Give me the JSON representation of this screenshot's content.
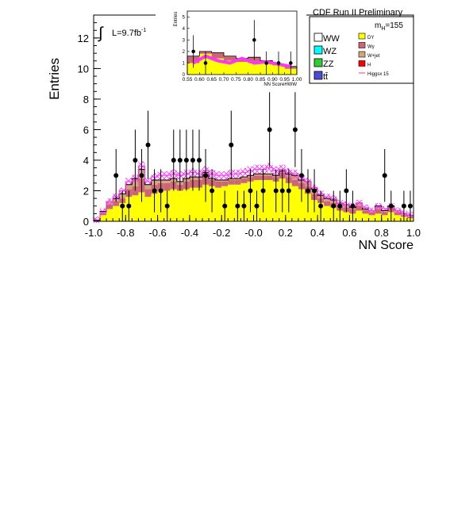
{
  "header": {
    "experiment": "CDF Run II Preliminary",
    "mass_label_base": "m",
    "mass_label_sub": "H",
    "mass_label_value": "=155",
    "lumi_text": "L=9.7fb",
    "lumi_sup": "-1"
  },
  "legend": {
    "col1": [
      {
        "label": "WW",
        "color": "#ffffff"
      },
      {
        "label": "WZ",
        "color": "#00ffff"
      },
      {
        "label": "ZZ",
        "color": "#33cc33"
      },
      {
        "label": "tt̄",
        "color": "#4b4bd6"
      }
    ],
    "col2": [
      {
        "label": "DY",
        "color": "#ffff00"
      },
      {
        "label": "Wγ",
        "color": "#cc6677"
      },
      {
        "label": "W+jet",
        "color": "#d2a679"
      },
      {
        "label": "H",
        "color": "#ff0000"
      },
      {
        "label": "Higgsx 15",
        "color": "#ff3366"
      }
    ]
  },
  "chart_data": {
    "type": "bar",
    "xlabel": "NN Score",
    "ylabel": "Entries",
    "xlim": [
      -1.0,
      1.0
    ],
    "ylim": [
      0,
      13.5
    ],
    "xticks": [
      "-1.0",
      "-0.8",
      "-0.6",
      "-0.4",
      "-0.2",
      "-0.0",
      "0.2",
      "0.4",
      "0.6",
      "0.8",
      "1.0"
    ],
    "yticks": [
      "0",
      "2",
      "4",
      "6",
      "8",
      "10",
      "12"
    ],
    "bin_edges_start": -1.0,
    "bin_width": 0.04,
    "series": [
      {
        "name": "DY",
        "values": [
          0.05,
          0.4,
          0.8,
          1.0,
          1.2,
          1.6,
          1.7,
          1.9,
          1.6,
          1.8,
          2.0,
          2.0,
          2.1,
          2.0,
          2.1,
          2.2,
          2.2,
          2.4,
          2.3,
          2.2,
          2.3,
          2.4,
          2.4,
          2.5,
          2.6,
          2.7,
          2.7,
          2.7,
          2.6,
          2.8,
          2.5,
          2.3,
          2.1,
          1.8,
          1.4,
          1.2,
          1.0,
          0.9,
          0.7,
          0.6,
          0.5,
          0.7,
          0.5,
          0.4,
          0.5,
          0.4,
          0.6,
          0.4,
          0.3,
          0.2
        ]
      },
      {
        "name": "Wγ",
        "values": [
          0.0,
          0.15,
          0.3,
          0.3,
          0.3,
          0.5,
          0.6,
          0.9,
          0.5,
          0.6,
          0.5,
          0.5,
          0.5,
          0.4,
          0.5,
          0.5,
          0.5,
          0.6,
          0.4,
          0.4,
          0.3,
          0.3,
          0.3,
          0.3,
          0.3,
          0.3,
          0.3,
          0.3,
          0.3,
          0.4,
          0.4,
          0.4,
          0.4,
          0.5,
          0.4,
          0.3,
          0.3,
          0.3,
          0.3,
          0.3,
          0.3,
          0.3,
          0.2,
          0.2,
          0.3,
          0.2,
          0.3,
          0.2,
          0.1,
          0.1
        ]
      },
      {
        "name": "W+jet",
        "values": [
          0.0,
          0.1,
          0.2,
          0.2,
          0.3,
          0.3,
          0.5,
          0.6,
          0.3,
          0.3,
          0.2,
          0.2,
          0.2,
          0.2,
          0.2,
          0.2,
          0.2,
          0.2,
          0.1,
          0.1,
          0.1,
          0.1,
          0.1,
          0.1,
          0.1,
          0.1,
          0.1,
          0.1,
          0.1,
          0.1,
          0.2,
          0.3,
          0.2,
          0.3,
          0.3,
          0.2,
          0.2,
          0.2,
          0.2,
          0.2,
          0.1,
          0.2,
          0.1,
          0.1,
          0.2,
          0.1,
          0.1,
          0.1,
          0.1,
          0.1
        ]
      },
      {
        "name": "Higgsx 15",
        "values": [
          0.1,
          0.6,
          1.3,
          1.6,
          2.0,
          2.6,
          2.7,
          3.6,
          2.6,
          2.9,
          3.0,
          3.0,
          3.1,
          3.0,
          3.1,
          3.2,
          3.1,
          3.3,
          3.1,
          3.0,
          3.0,
          3.1,
          3.1,
          3.2,
          3.3,
          3.4,
          3.4,
          3.5,
          3.3,
          3.4,
          3.2,
          3.1,
          2.8,
          2.6,
          2.2,
          1.8,
          1.6,
          1.5,
          1.2,
          1.1,
          1.0,
          1.2,
          0.9,
          0.7,
          0.9,
          0.8,
          0.9,
          0.7,
          0.5,
          0.4
        ]
      },
      {
        "name": "Data",
        "points": [
          {
            "x": -0.86,
            "y": 3,
            "err": 1.73
          },
          {
            "x": -0.82,
            "y": 1,
            "err": 1.0
          },
          {
            "x": -0.78,
            "y": 1,
            "err": 1.0
          },
          {
            "x": -0.74,
            "y": 4,
            "err": 2.0
          },
          {
            "x": -0.7,
            "y": 3,
            "err": 1.73
          },
          {
            "x": -0.66,
            "y": 5,
            "err": 2.24
          },
          {
            "x": -0.62,
            "y": 2,
            "err": 1.41
          },
          {
            "x": -0.58,
            "y": 2,
            "err": 1.41
          },
          {
            "x": -0.54,
            "y": 1,
            "err": 1.0
          },
          {
            "x": -0.5,
            "y": 4,
            "err": 2.0
          },
          {
            "x": -0.46,
            "y": 4,
            "err": 2.0
          },
          {
            "x": -0.42,
            "y": 4,
            "err": 2.0
          },
          {
            "x": -0.38,
            "y": 4,
            "err": 2.0
          },
          {
            "x": -0.34,
            "y": 4,
            "err": 2.0
          },
          {
            "x": -0.3,
            "y": 3,
            "err": 1.73
          },
          {
            "x": -0.26,
            "y": 2,
            "err": 1.41
          },
          {
            "x": -0.18,
            "y": 1,
            "err": 1.0
          },
          {
            "x": -0.14,
            "y": 5,
            "err": 2.24
          },
          {
            "x": -0.1,
            "y": 1,
            "err": 1.0
          },
          {
            "x": -0.06,
            "y": 1,
            "err": 1.0
          },
          {
            "x": -0.02,
            "y": 2,
            "err": 1.41
          },
          {
            "x": 0.02,
            "y": 1,
            "err": 1.0
          },
          {
            "x": 0.06,
            "y": 2,
            "err": 1.41
          },
          {
            "x": 0.1,
            "y": 6,
            "err": 2.45
          },
          {
            "x": 0.14,
            "y": 2,
            "err": 1.41
          },
          {
            "x": 0.18,
            "y": 2,
            "err": 1.41
          },
          {
            "x": 0.22,
            "y": 2,
            "err": 1.41
          },
          {
            "x": 0.26,
            "y": 6,
            "err": 2.45
          },
          {
            "x": 0.3,
            "y": 3,
            "err": 1.73
          },
          {
            "x": 0.34,
            "y": 2,
            "err": 1.41
          },
          {
            "x": 0.38,
            "y": 2,
            "err": 1.41
          },
          {
            "x": 0.42,
            "y": 1,
            "err": 1.0
          },
          {
            "x": 0.5,
            "y": 1,
            "err": 1.0
          },
          {
            "x": 0.54,
            "y": 1,
            "err": 1.0
          },
          {
            "x": 0.58,
            "y": 2,
            "err": 1.41
          },
          {
            "x": 0.62,
            "y": 1,
            "err": 1.0
          },
          {
            "x": 0.82,
            "y": 3,
            "err": 1.73
          },
          {
            "x": 0.86,
            "y": 1,
            "err": 1.0
          },
          {
            "x": 0.94,
            "y": 1,
            "err": 1.0
          },
          {
            "x": 0.98,
            "y": 1,
            "err": 1.0
          }
        ]
      }
    ],
    "inset": {
      "type": "bar",
      "xlabel": "NN ScoreHWW",
      "ylabel": "Entries",
      "xlim": [
        0.55,
        1.0
      ],
      "ylim": [
        0,
        5.5
      ],
      "xticks": [
        "0.55",
        "0.60",
        "0.65",
        "0.70",
        "0.75",
        "0.80",
        "0.85",
        "0.90",
        "0.95",
        "1.00"
      ],
      "yticks": [
        "0",
        "1",
        "2",
        "3",
        "4",
        "5"
      ],
      "bin_edges_start": 0.55,
      "bin_width": 0.05,
      "dy_values": [
        1.0,
        1.8,
        1.4,
        1.2,
        1.1,
        1.0,
        1.1,
        0.8,
        0.5
      ],
      "total_values": [
        1.6,
        2.0,
        1.9,
        1.6,
        1.4,
        1.5,
        1.2,
        0.9,
        0.7
      ],
      "higgs_values": [
        1.0,
        1.6,
        1.2,
        1.0,
        1.4,
        1.0,
        1.1,
        0.9,
        0.7
      ],
      "data": [
        {
          "x": 0.575,
          "y": 2,
          "err": 1.41
        },
        {
          "x": 0.625,
          "y": 1,
          "err": 1.0
        },
        {
          "x": 0.825,
          "y": 3,
          "err": 1.73
        },
        {
          "x": 0.875,
          "y": 1,
          "err": 1.0
        },
        {
          "x": 0.925,
          "y": 1,
          "err": 1.0
        },
        {
          "x": 0.975,
          "y": 1,
          "err": 1.0
        }
      ]
    }
  }
}
